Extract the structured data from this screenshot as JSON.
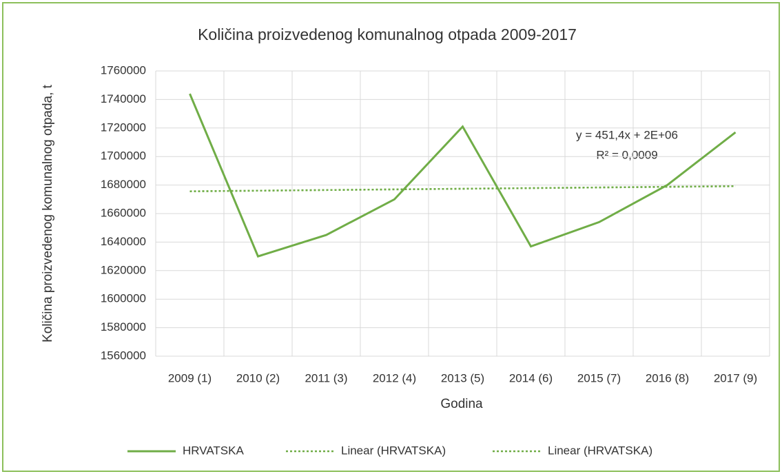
{
  "chart_data": {
    "type": "line",
    "title": "Količina proizvedenog komunalnog otpada 2009-2017",
    "x_label": "Godina",
    "y_label": "Količina proizvedenog komunalnog otpada, t",
    "annotations": [
      "y = 451,4x + 2E+06",
      "R² = 0,0009"
    ],
    "categories": [
      "2009 (1)",
      "2010 (2)",
      "2011 (3)",
      "2012 (4)",
      "2013 (5)",
      "2014 (6)",
      "2015 (7)",
      "2016 (8)",
      "2017 (9)"
    ],
    "series": [
      {
        "name": "HRVATSKA",
        "color": "#70ad47",
        "style": "solid",
        "values": [
          1744000,
          1630000,
          1645000,
          1670000,
          1721000,
          1637000,
          1654000,
          1680000,
          1717000
        ]
      },
      {
        "name": "Linear (HRVATSKA)",
        "color": "#70ad47",
        "style": "dotted",
        "values": [
          1675600,
          1676051,
          1676503,
          1676954,
          1677406,
          1677857,
          1678308,
          1678760,
          1679211
        ]
      },
      {
        "name": "Linear (HRVATSKA)",
        "color": "#70ad47",
        "style": "dotted",
        "values": [
          1675600,
          1676051,
          1676503,
          1676954,
          1677406,
          1677857,
          1678308,
          1678760,
          1679211
        ]
      }
    ],
    "ylim": [
      1560000,
      1760000
    ],
    "yticks": [
      1560000,
      1580000,
      1600000,
      1620000,
      1640000,
      1660000,
      1680000,
      1700000,
      1720000,
      1740000,
      1760000
    ],
    "grid": true,
    "legend": "bottom"
  }
}
